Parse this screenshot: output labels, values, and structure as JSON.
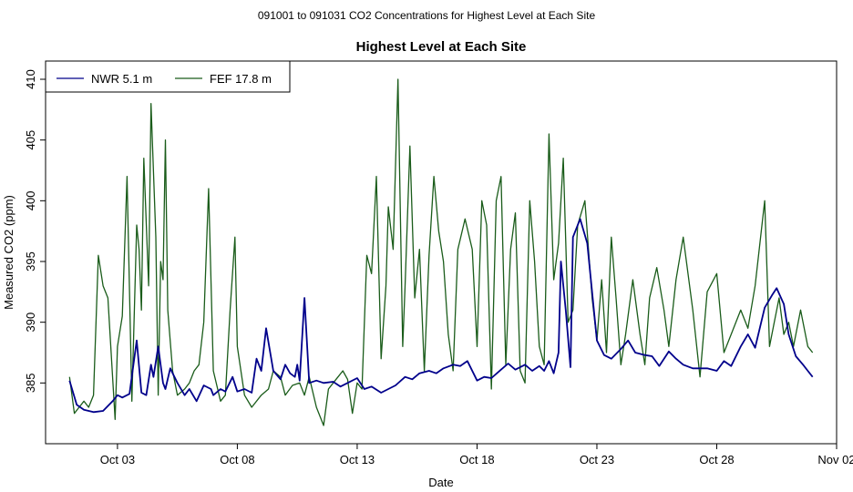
{
  "page": {
    "supertitle": "091001  to  091031 CO2 Concentrations for Highest Level at Each Site"
  },
  "chart_data": {
    "type": "line",
    "title": "Highest Level at Each Site",
    "xlabel": "Date",
    "ylabel": "Measured CO2 (ppm)",
    "x_unit": "days (Oct 1 = 1)",
    "xlim": [
      0.0,
      33.0
    ],
    "ylim": [
      380.0,
      411.5
    ],
    "x_ticks": [
      {
        "value": 3,
        "label": "Oct 03"
      },
      {
        "value": 8,
        "label": "Oct 08"
      },
      {
        "value": 13,
        "label": "Oct 13"
      },
      {
        "value": 18,
        "label": "Oct 18"
      },
      {
        "value": 23,
        "label": "Oct 23"
      },
      {
        "value": 28,
        "label": "Oct 28"
      },
      {
        "value": 33,
        "label": "Nov 02"
      }
    ],
    "y_ticks": [
      385,
      390,
      395,
      400,
      405,
      410
    ],
    "legend_position": "top-left",
    "grid": false,
    "series": [
      {
        "name": "NWR  5.1 m",
        "color": "#00008b",
        "x": [
          1.0,
          1.3,
          1.6,
          2.0,
          2.4,
          2.8,
          3.0,
          3.2,
          3.5,
          3.8,
          4.0,
          4.2,
          4.4,
          4.5,
          4.7,
          4.9,
          5.0,
          5.2,
          5.5,
          5.8,
          6.0,
          6.3,
          6.6,
          6.9,
          7.0,
          7.3,
          7.5,
          7.8,
          8.0,
          8.3,
          8.6,
          8.8,
          9.0,
          9.2,
          9.5,
          9.8,
          10.0,
          10.2,
          10.4,
          10.5,
          10.6,
          10.8,
          11.0,
          11.3,
          11.6,
          12.0,
          12.3,
          12.6,
          13.0,
          13.3,
          13.6,
          14.0,
          14.3,
          14.6,
          15.0,
          15.3,
          15.6,
          16.0,
          16.3,
          16.6,
          17.0,
          17.3,
          17.6,
          18.0,
          18.3,
          18.6,
          19.0,
          19.3,
          19.6,
          20.0,
          20.3,
          20.6,
          20.8,
          21.0,
          21.2,
          21.4,
          21.5,
          21.7,
          21.9,
          22.0,
          22.3,
          22.6,
          23.0,
          23.3,
          23.6,
          24.0,
          24.3,
          24.6,
          25.0,
          25.3,
          25.6,
          26.0,
          26.3,
          26.6,
          27.0,
          27.3,
          27.6,
          28.0,
          28.3,
          28.6,
          29.0,
          29.3,
          29.6,
          30.0,
          30.3,
          30.5,
          30.8,
          31.0,
          31.3,
          31.6,
          31.8,
          32.0
        ],
        "values": [
          385.2,
          383.2,
          382.8,
          382.6,
          382.7,
          383.5,
          384.0,
          383.8,
          384.1,
          388.5,
          384.2,
          384.0,
          386.5,
          385.5,
          388.0,
          385.0,
          384.5,
          386.2,
          385.0,
          384.0,
          384.5,
          383.5,
          384.8,
          384.5,
          384.0,
          384.5,
          384.3,
          385.5,
          384.3,
          384.5,
          384.2,
          387.0,
          386.0,
          389.5,
          386.0,
          385.3,
          386.5,
          385.8,
          385.5,
          386.5,
          385.2,
          392.0,
          385.0,
          385.2,
          385.0,
          385.1,
          384.7,
          385.0,
          385.4,
          384.5,
          384.7,
          384.2,
          384.5,
          384.8,
          385.5,
          385.3,
          385.8,
          386.0,
          385.8,
          386.2,
          386.5,
          386.4,
          386.8,
          385.2,
          385.5,
          385.4,
          386.1,
          386.6,
          386.1,
          386.5,
          386.0,
          386.4,
          386.0,
          386.8,
          385.8,
          387.5,
          395.0,
          391.0,
          386.3,
          397.0,
          398.5,
          396.5,
          388.5,
          387.3,
          387.0,
          387.8,
          388.5,
          387.5,
          387.3,
          387.2,
          386.4,
          387.6,
          387.0,
          386.5,
          386.2,
          386.2,
          386.2,
          386.0,
          386.8,
          386.4,
          388.0,
          389.0,
          387.9,
          391.2,
          392.2,
          392.8,
          391.5,
          389.0,
          387.2,
          386.5,
          386.0,
          385.5
        ],
        "bound_label": "NWR  5.1 m"
      },
      {
        "name": "FEF   17.8 m",
        "color": "#1a5c1a",
        "x": [
          1.0,
          1.2,
          1.4,
          1.6,
          1.8,
          2.0,
          2.2,
          2.4,
          2.6,
          2.9,
          3.0,
          3.2,
          3.4,
          3.6,
          3.8,
          3.9,
          4.0,
          4.1,
          4.3,
          4.4,
          4.6,
          4.7,
          4.8,
          4.9,
          5.0,
          5.1,
          5.3,
          5.5,
          5.8,
          6.0,
          6.2,
          6.4,
          6.6,
          6.8,
          7.0,
          7.3,
          7.5,
          7.7,
          7.9,
          8.0,
          8.3,
          8.6,
          9.0,
          9.3,
          9.5,
          9.8,
          10.0,
          10.3,
          10.6,
          10.8,
          11.0,
          11.3,
          11.6,
          11.8,
          12.0,
          12.2,
          12.4,
          12.6,
          12.8,
          13.0,
          13.2,
          13.4,
          13.6,
          13.8,
          14.0,
          14.2,
          14.3,
          14.5,
          14.7,
          14.9,
          15.0,
          15.2,
          15.4,
          15.6,
          15.8,
          16.0,
          16.2,
          16.4,
          16.6,
          16.8,
          17.0,
          17.2,
          17.5,
          17.8,
          18.0,
          18.2,
          18.4,
          18.6,
          18.8,
          19.0,
          19.2,
          19.4,
          19.6,
          19.8,
          20.0,
          20.2,
          20.4,
          20.6,
          20.8,
          21.0,
          21.2,
          21.4,
          21.6,
          21.8,
          22.0,
          22.2,
          22.5,
          22.8,
          23.0,
          23.2,
          23.4,
          23.6,
          23.8,
          24.0,
          24.2,
          24.5,
          24.8,
          25.0,
          25.2,
          25.5,
          25.8,
          26.0,
          26.3,
          26.6,
          27.0,
          27.3,
          27.6,
          28.0,
          28.3,
          28.6,
          29.0,
          29.3,
          29.6,
          30.0,
          30.2,
          30.4,
          30.6,
          30.8,
          31.0,
          31.2,
          31.5,
          31.8,
          32.0
        ],
        "values": [
          385.5,
          382.5,
          383.0,
          383.5,
          383.0,
          384.0,
          395.5,
          393.0,
          392.0,
          382.0,
          388.0,
          390.5,
          402.0,
          383.5,
          398.0,
          396.0,
          391.0,
          403.5,
          393.0,
          408.0,
          397.0,
          384.0,
          395.0,
          393.5,
          405.0,
          391.0,
          386.0,
          384.0,
          384.5,
          385.0,
          386.0,
          386.5,
          390.0,
          401.0,
          386.0,
          383.5,
          384.0,
          391.0,
          397.0,
          388.0,
          384.0,
          383.0,
          384.0,
          384.5,
          386.0,
          385.5,
          384.0,
          384.8,
          385.0,
          384.0,
          385.5,
          383.0,
          381.5,
          384.5,
          385.0,
          385.5,
          386.0,
          385.3,
          382.5,
          385.0,
          384.5,
          395.5,
          394.0,
          402.0,
          387.0,
          393.0,
          399.5,
          396.0,
          410.0,
          388.0,
          393.0,
          404.5,
          392.0,
          396.0,
          386.0,
          395.5,
          402.0,
          397.5,
          395.0,
          389.0,
          386.0,
          396.0,
          398.5,
          396.0,
          388.0,
          400.0,
          398.0,
          384.5,
          400.0,
          402.0,
          386.5,
          396.0,
          399.0,
          386.0,
          385.0,
          400.0,
          395.0,
          388.0,
          386.5,
          405.5,
          393.5,
          396.5,
          403.5,
          390.0,
          391.0,
          398.0,
          400.0,
          392.0,
          388.5,
          393.5,
          387.5,
          397.0,
          392.0,
          386.5,
          389.0,
          393.5,
          389.0,
          386.5,
          392.0,
          394.5,
          391.0,
          388.0,
          393.5,
          397.0,
          391.0,
          385.5,
          392.5,
          394.0,
          387.5,
          389.0,
          391.0,
          389.5,
          393.0,
          400.0,
          388.0,
          390.0,
          392.0,
          389.0,
          390.0,
          388.0,
          391.0,
          388.0,
          387.5
        ],
        "bound_label": "FEF   17.8 m"
      }
    ]
  }
}
